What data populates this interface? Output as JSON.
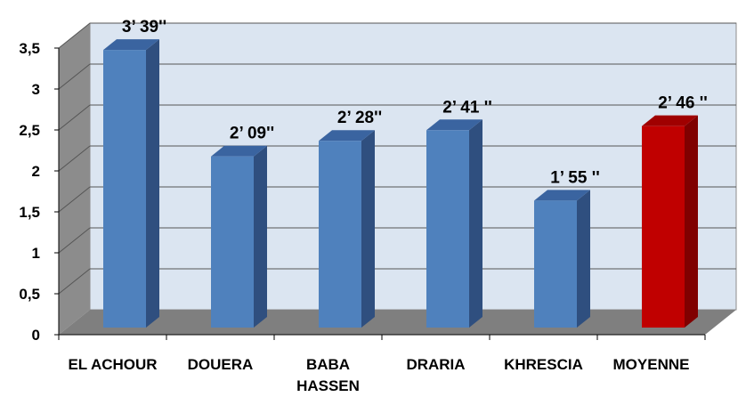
{
  "chart_data": {
    "type": "bar",
    "title": "",
    "xlabel": "",
    "ylabel": "",
    "ylim": [
      0,
      3.5
    ],
    "yticks": [
      "0",
      "0,5",
      "1",
      "1,5",
      "2",
      "2,5",
      "3",
      "3,5"
    ],
    "ytick_values": [
      0,
      0.5,
      1,
      1.5,
      2,
      2.5,
      3,
      3.5
    ],
    "grid": true,
    "legend": "none",
    "categories": [
      [
        "EL ACHOUR"
      ],
      [
        "DOUERA"
      ],
      [
        "BABA",
        "HASSEN"
      ],
      [
        "DRARIA"
      ],
      [
        "KHRESCIA"
      ],
      [
        "MOYENNE"
      ]
    ],
    "values": [
      3.39,
      2.09,
      2.28,
      2.41,
      1.55,
      2.46
    ],
    "data_labels": [
      "3’ 39''",
      "2’ 09''",
      "2’ 28''",
      "2’ 41 ''",
      "1’ 55 ''",
      "2’ 46 ''"
    ],
    "colors": {
      "bar": "#4f81bd",
      "bar_side": "#2f4f7f",
      "bar_top": "#3a64a0",
      "highlight": "#c00000",
      "highlight_side": "#800000",
      "highlight_top": "#a00000",
      "wall": "#dbe5f1",
      "side_wall": "#8c8c8c",
      "floor": "#7f7f7f",
      "grid": "#555555"
    },
    "highlight_index": 5
  }
}
